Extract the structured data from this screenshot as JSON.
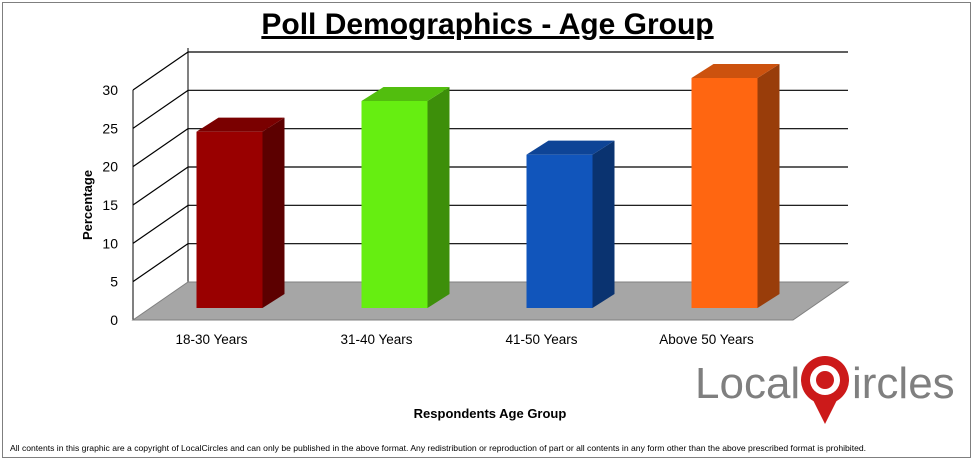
{
  "chart_data": {
    "type": "bar",
    "title": "Poll Demographics - Age Group",
    "xlabel": "Respondents Age Group",
    "ylabel": "Percentage",
    "categories": [
      "18-30 Years",
      "31-40 Years",
      "41-50 Years",
      "Above 50  Years"
    ],
    "values": [
      23,
      27,
      20,
      30
    ],
    "ylim": [
      0,
      30
    ],
    "yticks": [
      "0",
      "5",
      "10",
      "15",
      "20",
      "25",
      "30"
    ],
    "colors": [
      "#990000",
      "#66ee11",
      "#1155bb",
      "#ff6611"
    ],
    "grid": true,
    "style": "3d"
  },
  "logo": {
    "part1": "Local",
    "part2": "ircles"
  },
  "footer": "All contents in this graphic are a copyright of LocalCircles and can only be published in the above format. Any redistribution or reproduction of part or all contents in any form other than the above prescribed format is prohibited."
}
